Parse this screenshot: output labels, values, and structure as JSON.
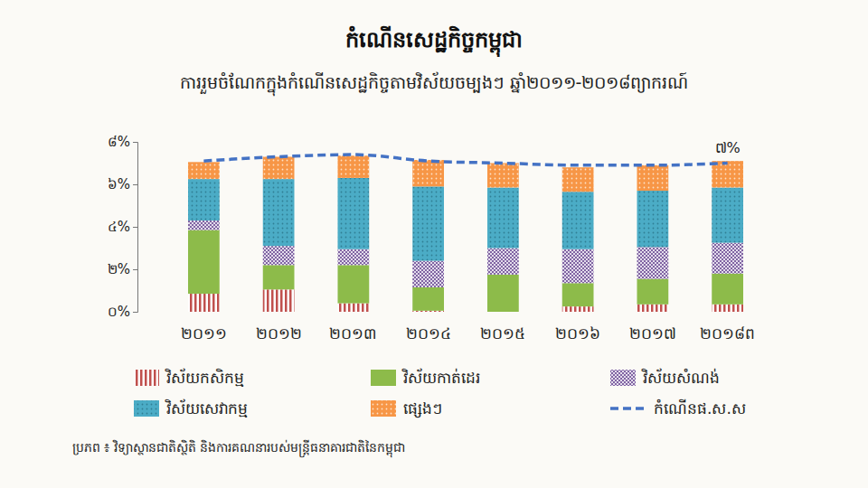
{
  "chart_data": {
    "type": "bar",
    "stacked": true,
    "title": "កំណើនសេដ្ឋកិច្ចកម្ពុជា",
    "subtitle": "ការរួមចំណែកក្នុងកំណើនសេដ្ឋកិច្ចតាមវិស័យចម្បងៗ ឆ្នាំ២០១១-២០១៨ព្យាករណ៍",
    "categories": [
      "២០១១",
      "២០១២",
      "២០១៣",
      "២០១៤",
      "២០១៥",
      "២០១៦",
      "២០១៧",
      "២០១៨ព"
    ],
    "series": [
      {
        "name": "វិស័យកសិកម្ម",
        "type": "bar",
        "color": "#c0504d",
        "values": [
          0.85,
          1.05,
          0.4,
          0.05,
          0.0,
          0.25,
          0.35,
          0.35
        ]
      },
      {
        "name": "វិស័យកាត់ដេរ",
        "type": "bar",
        "color": "#8dbb4a",
        "values": [
          3.0,
          1.15,
          1.8,
          1.1,
          1.75,
          1.1,
          1.2,
          1.45
        ]
      },
      {
        "name": "វិស័យសំណង់",
        "type": "bar",
        "color": "#8064a2",
        "values": [
          0.45,
          0.9,
          0.75,
          1.25,
          1.25,
          1.6,
          1.5,
          1.45
        ]
      },
      {
        "name": "វិស័យសេវាកម្ម",
        "type": "bar",
        "color": "#4bacc6",
        "values": [
          1.95,
          3.15,
          3.35,
          3.5,
          2.85,
          2.7,
          2.65,
          2.6
        ]
      },
      {
        "name": "ផ្សេងៗ",
        "type": "bar",
        "color": "#f79646",
        "values": [
          0.8,
          1.05,
          1.05,
          1.25,
          1.15,
          1.15,
          1.2,
          1.25
        ]
      },
      {
        "name": "កំណើនផ.ស.ស",
        "type": "line",
        "color": "#4472c4",
        "line_style": "dashed",
        "values": [
          7.1,
          7.3,
          7.4,
          7.1,
          7.0,
          6.9,
          6.9,
          7.0
        ]
      }
    ],
    "ylim": [
      0,
      8
    ],
    "yticks": [
      {
        "value": 0,
        "label": "០%"
      },
      {
        "value": 2,
        "label": "២%"
      },
      {
        "value": 4,
        "label": "៤%"
      },
      {
        "value": 6,
        "label": "៦%"
      },
      {
        "value": 8,
        "label": "៨%"
      }
    ],
    "grid": false,
    "legend": "bottom",
    "annotations": [
      {
        "text": "៧%",
        "x": "២០១៨ព",
        "y": 7
      }
    ],
    "source": "ប្រភព ៖ វិទ្យាស្ថានជាតិស្ថិតិ និងការគណនារបស់មន្ត្រីធនាគារជាតិនៃកម្ពុជា"
  }
}
